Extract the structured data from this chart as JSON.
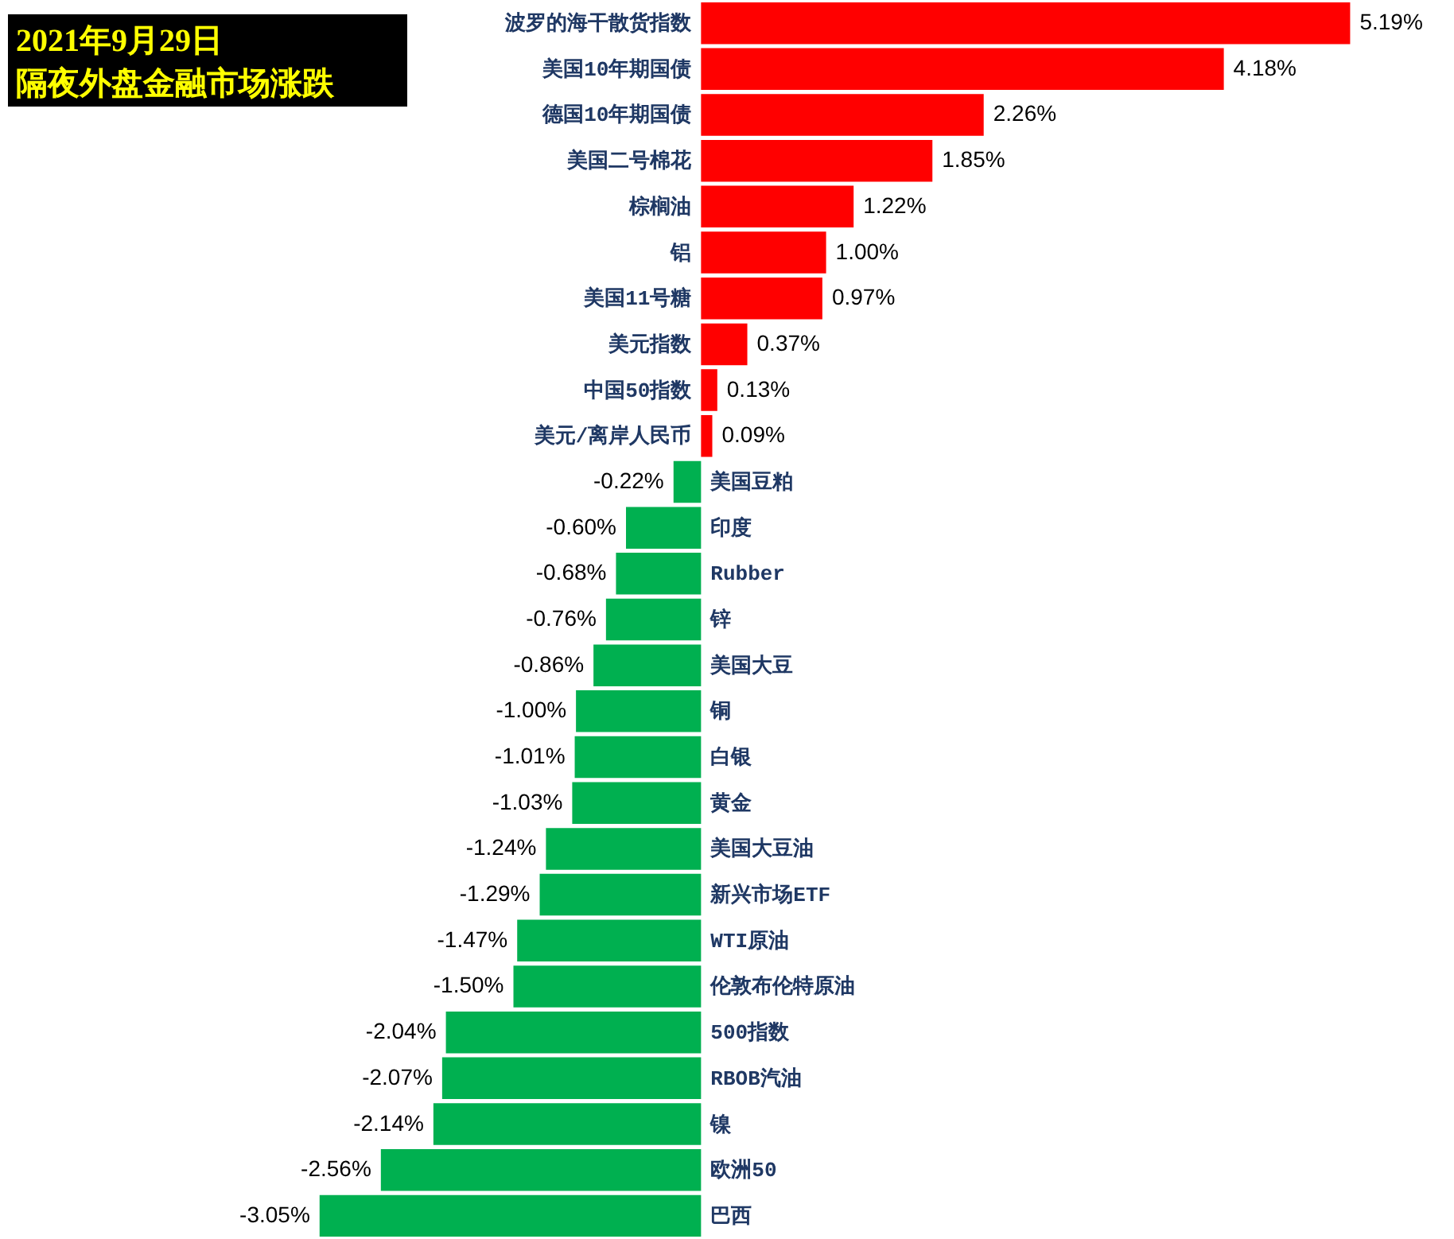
{
  "chart_data": {
    "type": "bar",
    "orientation": "horizontal",
    "title": "2021年9月29日",
    "subtitle": "隔夜外盘金融市场涨跌",
    "categories": [
      "波罗的海干散货指数",
      "美国10年期国债",
      "德国10年期国债",
      "美国二号棉花",
      "棕榈油",
      "铝",
      "美国11号糖",
      "美元指数",
      "中国50指数",
      "美元/离岸人民币",
      "美国豆粕",
      "印度",
      "Rubber",
      "锌",
      "美国大豆",
      "铜",
      "白银",
      "黄金",
      "美国大豆油",
      "新兴市场ETF",
      "WTI原油",
      "伦敦布伦特原油",
      "500指数",
      "RBOB汽油",
      "镍",
      "欧洲50",
      "巴西"
    ],
    "values": [
      5.19,
      4.18,
      2.26,
      1.85,
      1.22,
      1.0,
      0.97,
      0.37,
      0.13,
      0.09,
      -0.22,
      -0.6,
      -0.68,
      -0.76,
      -0.86,
      -1.0,
      -1.01,
      -1.03,
      -1.24,
      -1.29,
      -1.47,
      -1.5,
      -2.04,
      -2.07,
      -2.14,
      -2.56,
      -3.05
    ],
    "colors": [
      "#ff0000",
      "#ff0000",
      "#ff0000",
      "#ff0000",
      "#ff0000",
      "#ff0000",
      "#ff0000",
      "#ff0000",
      "#ff0000",
      "#ff0000",
      "#00b050",
      "#00b050",
      "#00b050",
      "#00b050",
      "#00b050",
      "#00b050",
      "#00b050",
      "#00b050",
      "#00b050",
      "#00b050",
      "#00b050",
      "#00b050",
      "#00b050",
      "#00b050",
      "#00b050",
      "#00b050",
      "#00b050"
    ],
    "value_labels": [
      "5.19%",
      "4.18%",
      "2.26%",
      "1.85%",
      "1.22%",
      "1.00%",
      "0.97%",
      "0.37%",
      "0.13%",
      "0.09%",
      "-0.22%",
      "-0.60%",
      "-0.68%",
      "-0.76%",
      "-0.86%",
      "-1.00%",
      "-1.01%",
      "-1.03%",
      "-1.24%",
      "-1.29%",
      "-1.47%",
      "-1.50%",
      "-2.04%",
      "-2.07%",
      "-2.14%",
      "-2.56%",
      "-3.05%"
    ]
  }
}
